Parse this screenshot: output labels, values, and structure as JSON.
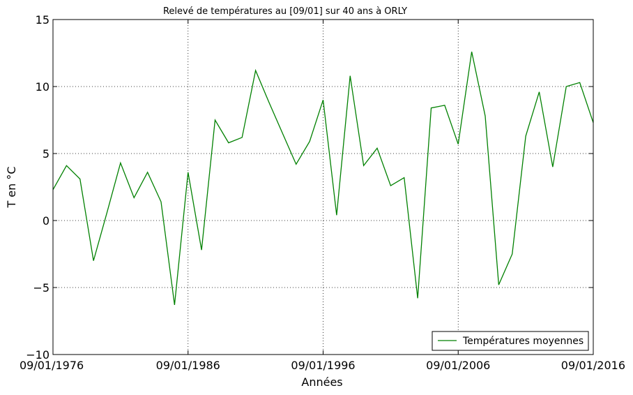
{
  "chart_data": {
    "type": "line",
    "title": "Relevé de températures au [09/01] sur 40 ans à ORLY",
    "xlabel": "Années",
    "ylabel": "T en °C",
    "xlim": [
      1976,
      2016
    ],
    "ylim": [
      -10,
      15
    ],
    "x_ticks": [
      1976,
      1986,
      1996,
      2006,
      2016
    ],
    "x_tick_labels": [
      "09/01/1976",
      "09/01/1986",
      "09/01/1996",
      "09/01/2006",
      "09/01/2016"
    ],
    "y_ticks": [
      -10,
      -5,
      0,
      5,
      10,
      15
    ],
    "y_tick_labels": [
      "−10",
      "−5",
      "0",
      "5",
      "10",
      "15"
    ],
    "grid": true,
    "legend_position": "lower-right",
    "series": [
      {
        "name": "Températures moyennes",
        "color": "#008000",
        "x": [
          1976,
          1977,
          1978,
          1979,
          1980,
          1981,
          1982,
          1983,
          1984,
          1985,
          1986,
          1987,
          1988,
          1989,
          1990,
          1991,
          1992,
          1993,
          1994,
          1995,
          1996,
          1997,
          1998,
          1999,
          2000,
          2001,
          2002,
          2003,
          2004,
          2005,
          2006,
          2007,
          2008,
          2009,
          2010,
          2011,
          2012,
          2013,
          2014,
          2015,
          2016
        ],
        "values": [
          2.3,
          4.1,
          3.1,
          -3.0,
          0.6,
          4.3,
          1.7,
          3.6,
          1.4,
          -6.3,
          3.6,
          -2.2,
          7.5,
          5.8,
          6.2,
          11.2,
          8.8,
          6.5,
          4.2,
          5.9,
          9.0,
          0.4,
          10.8,
          4.1,
          5.4,
          2.6,
          3.2,
          -5.8,
          8.4,
          8.6,
          5.7,
          12.6,
          7.8,
          -4.8,
          -2.5,
          6.3,
          9.6,
          4.0,
          10.0,
          10.3,
          7.3
        ]
      }
    ]
  }
}
